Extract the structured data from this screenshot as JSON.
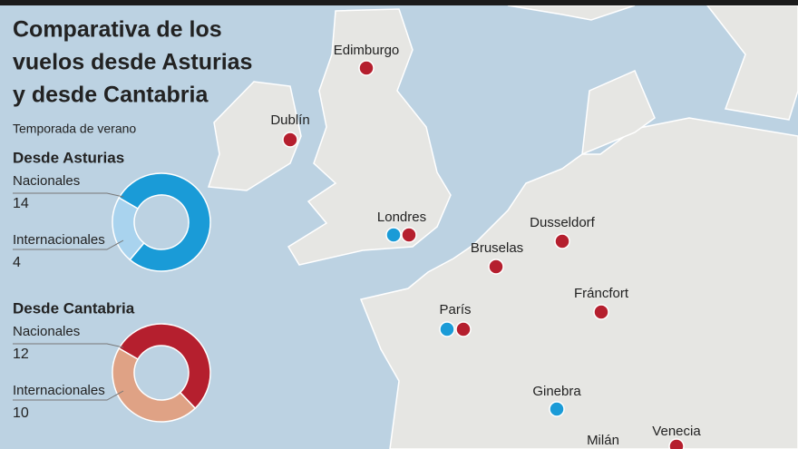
{
  "header": {
    "title": [
      "Comparativa de los",
      "vuelos desde Asturias",
      "y desde Cantabria"
    ],
    "subtitle": "Temporada de verano"
  },
  "chart_data": [
    {
      "type": "donut",
      "title": "Desde Asturias",
      "categories": [
        "Nacionales",
        "Internacionales"
      ],
      "values": [
        14,
        4
      ],
      "colors": [
        "#1a9bd7",
        "#a9d3ee"
      ]
    },
    {
      "type": "donut",
      "title": "Desde Cantabria",
      "categories": [
        "Nacionales",
        "Internacionales"
      ],
      "values": [
        12,
        10
      ],
      "colors": [
        "#b51f2e",
        "#dfa285"
      ]
    }
  ],
  "map": {
    "cities": [
      "Edimburgo",
      "Dublín",
      "Londres",
      "Dusseldorf",
      "Bruselas",
      "París",
      "Fráncfort",
      "Ginebra",
      "Milán",
      "Venecia"
    ]
  }
}
